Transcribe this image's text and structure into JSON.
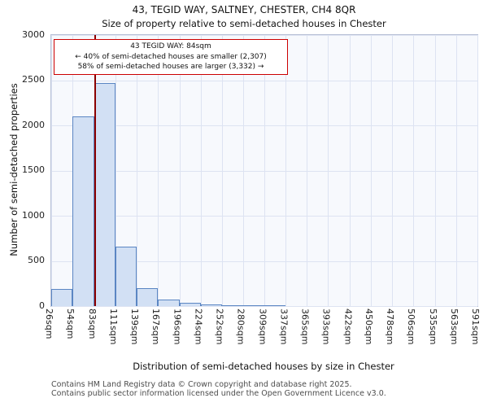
{
  "chart_data": {
    "type": "bar",
    "title": "43, TEGID WAY, SALTNEY, CHESTER, CH4 8QR",
    "subtitle": "Size of property relative to semi-detached houses in Chester",
    "xlabel": "Distribution of semi-detached houses by size in Chester",
    "ylabel": "Number of semi-detached properties",
    "bin_edges_sqm": [
      26,
      54,
      83,
      111,
      139,
      167,
      196,
      224,
      252,
      280,
      309,
      337,
      365,
      393,
      422,
      450,
      478,
      506,
      535,
      563,
      591
    ],
    "xtick_labels": [
      "26sqm",
      "54sqm",
      "83sqm",
      "111sqm",
      "139sqm",
      "167sqm",
      "196sqm",
      "224sqm",
      "252sqm",
      "280sqm",
      "309sqm",
      "337sqm",
      "365sqm",
      "393sqm",
      "422sqm",
      "450sqm",
      "478sqm",
      "506sqm",
      "535sqm",
      "563sqm",
      "591sqm"
    ],
    "values": [
      190,
      2100,
      2470,
      660,
      200,
      70,
      35,
      20,
      12,
      8,
      4,
      0,
      0,
      0,
      0,
      0,
      0,
      0,
      0,
      0
    ],
    "ylim": [
      0,
      3000
    ],
    "yticks": [
      0,
      500,
      1000,
      1500,
      2000,
      2500,
      3000
    ],
    "grid": true,
    "legend": "none",
    "marker": {
      "value_sqm": 84,
      "color": "#8b0000"
    },
    "annotation": {
      "line1": "43 TEGID WAY: 84sqm",
      "line2": "← 40% of semi-detached houses are smaller (2,307)",
      "line3": "58% of semi-detached houses are larger (3,332) →"
    },
    "colors": {
      "bar_fill": "#d2e0f4",
      "bar_border": "#5b86c3",
      "grid": "#dde3f2",
      "marker": "#8b0000",
      "plot_background": "#f7f9fd"
    }
  },
  "footer": {
    "line1": "Contains HM Land Registry data © Crown copyright and database right 2025.",
    "line2": "Contains public sector information licensed under the Open Government Licence v3.0."
  }
}
